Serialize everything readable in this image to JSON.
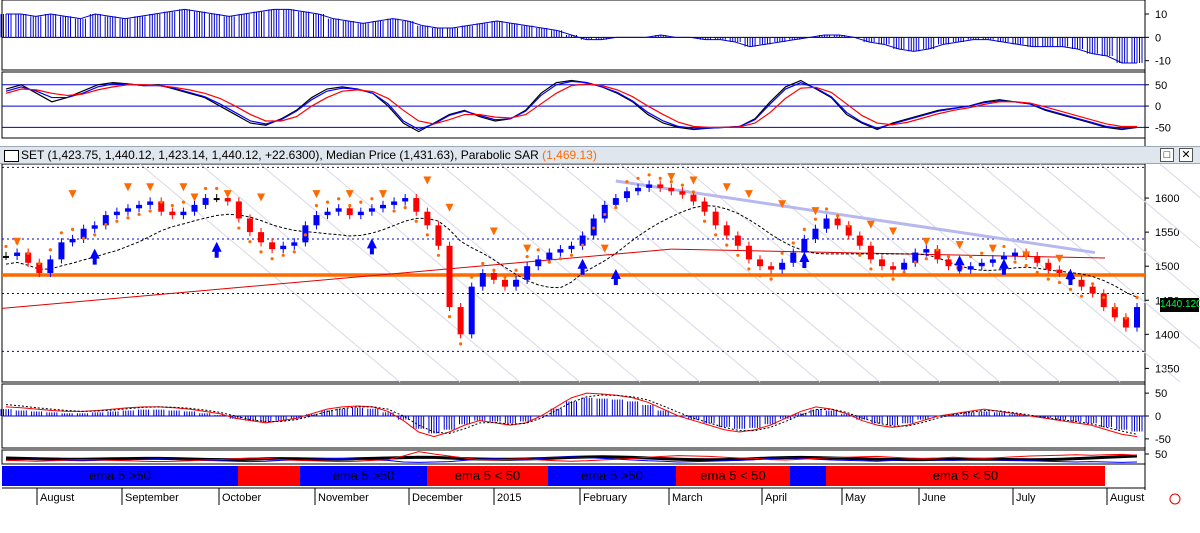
{
  "title_bar": {
    "symbol_text": "SET (1,423.75, 1,440.12, 1,423.14, 1,440.12, +22.6300), Median Price (1,431.63), Parabolic SAR",
    "sar_value": "(1,469.13)",
    "maximize_label": "□",
    "close_label": "✕"
  },
  "last_price": "1440.120",
  "colors": {
    "up": "#0000ff",
    "down": "#ff0000",
    "neutral": "#000000",
    "sar": "#ff6a00",
    "grid": "#0000cc",
    "support": "#ff6a00"
  },
  "chart_data": [
    {
      "type": "bar",
      "name": "momentum histogram",
      "yticks": [
        "10",
        "0",
        "-10"
      ],
      "ylim": [
        -14,
        16
      ],
      "values": [
        10,
        10,
        9,
        10,
        9,
        8,
        10,
        9,
        8,
        9,
        10,
        11,
        12,
        11,
        10,
        9,
        10,
        11,
        12,
        12,
        11,
        10,
        8,
        7,
        6,
        7,
        8,
        7,
        5,
        4,
        4,
        5,
        6,
        7,
        6,
        5,
        4,
        3,
        1,
        -1,
        -1,
        0,
        0,
        0,
        1,
        0,
        0,
        -1,
        -1,
        -2,
        -4,
        -3,
        -2,
        -1,
        0,
        1,
        1,
        0,
        -2,
        -3,
        -5,
        -6,
        -5,
        -3,
        -2,
        -1,
        -1,
        -2,
        -3,
        -4,
        -4,
        -4,
        -5,
        -7,
        -8,
        -11,
        -11
      ]
    },
    {
      "type": "line",
      "name": "stochastic",
      "yticks": [
        "50",
        "0",
        "-50"
      ],
      "ylim": [
        -75,
        80
      ],
      "series": [
        {
          "color": "#000000",
          "values": [
            40,
            50,
            30,
            10,
            20,
            35,
            50,
            55,
            52,
            48,
            50,
            40,
            30,
            20,
            0,
            -20,
            -40,
            -45,
            -30,
            -10,
            20,
            40,
            45,
            40,
            30,
            0,
            -40,
            -60,
            -40,
            -20,
            -10,
            -25,
            -35,
            -30,
            -10,
            30,
            55,
            60,
            55,
            45,
            30,
            10,
            -20,
            -40,
            -50,
            -55,
            -52,
            -50,
            -48,
            -30,
            10,
            45,
            60,
            40,
            20,
            -20,
            -40,
            -55,
            -40,
            -30,
            -20,
            -10,
            -5,
            0,
            10,
            15,
            10,
            5,
            -10,
            -20,
            -30,
            -40,
            -50,
            -55,
            -50
          ]
        },
        {
          "color": "#0000ff",
          "values": [
            35,
            45,
            35,
            20,
            20,
            30,
            45,
            52,
            52,
            48,
            48,
            42,
            32,
            22,
            5,
            -15,
            -35,
            -42,
            -32,
            -12,
            15,
            35,
            42,
            40,
            30,
            5,
            -35,
            -55,
            -42,
            -22,
            -12,
            -22,
            -32,
            -30,
            -12,
            25,
            50,
            58,
            55,
            45,
            32,
            12,
            -15,
            -35,
            -48,
            -52,
            -52,
            -50,
            -48,
            -32,
            5,
            40,
            55,
            42,
            22,
            -15,
            -38,
            -52,
            -42,
            -32,
            -22,
            -12,
            -6,
            0,
            8,
            12,
            10,
            5,
            -8,
            -18,
            -28,
            -38,
            -48,
            -52,
            -50
          ]
        },
        {
          "color": "#ff0000",
          "values": [
            30,
            40,
            38,
            30,
            25,
            28,
            38,
            45,
            50,
            50,
            48,
            44,
            38,
            30,
            18,
            0,
            -20,
            -35,
            -35,
            -25,
            0,
            20,
            35,
            38,
            34,
            18,
            -10,
            -35,
            -42,
            -32,
            -20,
            -20,
            -26,
            -28,
            -20,
            5,
            30,
            48,
            52,
            48,
            38,
            22,
            0,
            -20,
            -38,
            -48,
            -50,
            -50,
            -49,
            -40,
            -15,
            18,
            42,
            44,
            32,
            5,
            -22,
            -40,
            -44,
            -38,
            -28,
            -18,
            -10,
            -4,
            4,
            10,
            10,
            7,
            -2,
            -12,
            -22,
            -32,
            -42,
            -48,
            -48
          ]
        }
      ]
    },
    {
      "type": "line",
      "name": "SET daily candles",
      "yticks": [
        "1600",
        "1550",
        "1500",
        "1450",
        "1400",
        "1350"
      ],
      "ylim": [
        1330,
        1650
      ],
      "support_level": 1487,
      "dotted_levels": [
        1645,
        1540,
        1460,
        1375
      ],
      "close": [
        1515,
        1520,
        1505,
        1490,
        1510,
        1535,
        1540,
        1555,
        1560,
        1575,
        1580,
        1585,
        1590,
        1595,
        1580,
        1575,
        1580,
        1590,
        1600,
        1600,
        1595,
        1570,
        1550,
        1535,
        1525,
        1530,
        1535,
        1560,
        1575,
        1580,
        1585,
        1575,
        1580,
        1585,
        1590,
        1595,
        1600,
        1580,
        1560,
        1530,
        1440,
        1400,
        1470,
        1490,
        1480,
        1470,
        1480,
        1500,
        1510,
        1520,
        1525,
        1530,
        1545,
        1570,
        1590,
        1600,
        1610,
        1615,
        1620,
        1615,
        1610,
        1605,
        1595,
        1580,
        1560,
        1545,
        1530,
        1510,
        1500,
        1495,
        1505,
        1520,
        1540,
        1555,
        1570,
        1560,
        1545,
        1530,
        1510,
        1500,
        1495,
        1505,
        1520,
        1525,
        1510,
        1500,
        1495,
        1500,
        1505,
        1510,
        1515,
        1520,
        1515,
        1505,
        1495,
        1490,
        1480,
        1470,
        1460,
        1440,
        1425,
        1410,
        1440
      ],
      "sar_marks_down": [
        [
          1,
          1530
        ],
        [
          6,
          1600
        ],
        [
          11,
          1610
        ],
        [
          13,
          1610
        ],
        [
          16,
          1610
        ],
        [
          17,
          1595
        ],
        [
          20,
          1600
        ],
        [
          23,
          1595
        ],
        [
          28,
          1600
        ],
        [
          31,
          1600
        ],
        [
          34,
          1600
        ],
        [
          38,
          1620
        ],
        [
          40,
          1580
        ],
        [
          44,
          1545
        ],
        [
          47,
          1520
        ],
        [
          54,
          1520
        ],
        [
          60,
          1625
        ],
        [
          62,
          1620
        ],
        [
          65,
          1610
        ],
        [
          67,
          1600
        ],
        [
          70,
          1585
        ],
        [
          73,
          1575
        ],
        [
          78,
          1555
        ],
        [
          80,
          1545
        ],
        [
          83,
          1530
        ],
        [
          86,
          1525
        ],
        [
          89,
          1520
        ],
        [
          92,
          1510
        ],
        [
          95,
          1505
        ]
      ],
      "sar_marks_up": [
        [
          8,
          1520
        ],
        [
          19,
          1530
        ],
        [
          33,
          1535
        ],
        [
          52,
          1505
        ],
        [
          55,
          1490
        ],
        [
          72,
          1515
        ],
        [
          86,
          1510
        ],
        [
          90,
          1505
        ],
        [
          96,
          1490
        ]
      ]
    },
    {
      "type": "line",
      "name": "MACD",
      "yticks": [
        "50",
        "0",
        "-50"
      ],
      "ylim": [
        -70,
        70
      ],
      "series": [
        {
          "color": "#ff0000",
          "values": [
            20,
            18,
            15,
            12,
            10,
            10,
            12,
            15,
            18,
            20,
            20,
            18,
            15,
            10,
            5,
            -5,
            -10,
            -15,
            -10,
            -5,
            5,
            15,
            20,
            22,
            20,
            10,
            -10,
            -35,
            -45,
            -35,
            -20,
            -10,
            -15,
            -20,
            -15,
            0,
            20,
            40,
            50,
            48,
            45,
            40,
            30,
            15,
            0,
            -10,
            -20,
            -30,
            -35,
            -30,
            -20,
            -5,
            10,
            20,
            15,
            5,
            -10,
            -20,
            -25,
            -20,
            -10,
            0,
            5,
            10,
            15,
            10,
            5,
            0,
            -5,
            -10,
            -15,
            -20,
            -30,
            -40,
            -45
          ]
        },
        {
          "color": "#000000",
          "values": [
            25,
            22,
            18,
            15,
            12,
            10,
            11,
            13,
            16,
            19,
            20,
            19,
            17,
            13,
            8,
            0,
            -8,
            -12,
            -12,
            -8,
            0,
            10,
            16,
            20,
            20,
            15,
            0,
            -20,
            -35,
            -38,
            -28,
            -15,
            -14,
            -18,
            -16,
            -5,
            12,
            30,
            42,
            46,
            45,
            42,
            35,
            22,
            8,
            -5,
            -15,
            -25,
            -32,
            -32,
            -25,
            -12,
            2,
            14,
            15,
            8,
            -4,
            -15,
            -22,
            -22,
            -14,
            -4,
            3,
            8,
            12,
            11,
            7,
            2,
            -3,
            -8,
            -12,
            -17,
            -25,
            -33,
            -40
          ]
        }
      ],
      "histogram": [
        15,
        12,
        10,
        8,
        6,
        6,
        8,
        10,
        12,
        14,
        14,
        12,
        10,
        6,
        2,
        -6,
        -10,
        -14,
        -10,
        -6,
        4,
        12,
        16,
        18,
        16,
        8,
        -8,
        -28,
        -38,
        -30,
        -18,
        -10,
        -12,
        -16,
        -12,
        0,
        16,
        32,
        40,
        38,
        36,
        32,
        24,
        12,
        0,
        -8,
        -16,
        -24,
        -28,
        -26,
        -18,
        -6,
        6,
        14,
        12,
        4,
        -8,
        -16,
        -20,
        -16,
        -8,
        0,
        4,
        8,
        10,
        8,
        4,
        0,
        -4,
        -8,
        -12,
        -16,
        -24,
        -30,
        -34
      ]
    },
    {
      "type": "line",
      "name": "ADX / DMI",
      "yticks": [
        "50"
      ],
      "ylim": [
        0,
        70
      ],
      "series": [
        {
          "color": "#000000",
          "values": [
            30,
            28,
            26,
            25,
            24,
            24,
            25,
            26,
            27,
            28,
            28,
            27,
            25,
            23,
            22,
            22,
            24,
            26,
            27,
            26,
            25,
            24,
            24,
            26,
            28,
            30,
            32,
            34,
            33,
            30,
            27,
            25,
            24,
            24,
            25,
            27,
            30,
            33,
            35,
            36,
            35,
            33,
            30,
            27,
            24,
            22,
            21,
            22,
            24,
            27,
            30,
            32,
            33,
            32,
            30,
            28,
            26,
            24,
            23,
            22,
            22,
            23,
            24,
            24,
            24,
            23,
            22,
            21,
            22,
            24,
            27,
            30,
            34,
            37,
            40
          ]
        },
        {
          "color": "#0000ff",
          "values": [
            20,
            22,
            24,
            20,
            18,
            16,
            18,
            20,
            22,
            24,
            26,
            24,
            22,
            18,
            16,
            14,
            12,
            14,
            18,
            20,
            24,
            26,
            28,
            24,
            20,
            18,
            10,
            8,
            10,
            12,
            18,
            24,
            26,
            22,
            20,
            28,
            34,
            36,
            32,
            28,
            24,
            20,
            16,
            14,
            10,
            12,
            14,
            16,
            18,
            22,
            28,
            32,
            28,
            24,
            20,
            18,
            16,
            14,
            18,
            22,
            24,
            20,
            18,
            22,
            24,
            20,
            18,
            16,
            14,
            12,
            10,
            12,
            10,
            8,
            10
          ]
        },
        {
          "color": "#ff0000",
          "values": [
            18,
            16,
            14,
            16,
            20,
            22,
            20,
            18,
            16,
            14,
            12,
            14,
            16,
            20,
            22,
            26,
            30,
            28,
            22,
            18,
            16,
            14,
            12,
            14,
            18,
            22,
            40,
            62,
            50,
            40,
            30,
            22,
            20,
            24,
            26,
            20,
            16,
            14,
            16,
            20,
            24,
            28,
            34,
            38,
            42,
            40,
            38,
            34,
            30,
            28,
            22,
            20,
            24,
            28,
            32,
            34,
            36,
            38,
            34,
            30,
            28,
            30,
            34,
            30,
            28,
            32,
            36,
            40,
            42,
            44,
            46,
            44,
            46,
            48,
            44
          ]
        }
      ]
    }
  ],
  "signal_bar": [
    {
      "label": "ema 5 >50",
      "color": "#0000ff"
    },
    {
      "label": "",
      "color": "#ff0000"
    },
    {
      "label": "ema 5 >50",
      "color": "#0000ff"
    },
    {
      "label": "ema 5 < 50",
      "color": "#ff0000"
    },
    {
      "label": "ema 5 >50",
      "color": "#0000ff"
    },
    {
      "label": "ema 5 < 50",
      "color": "#ff0000"
    },
    {
      "label": "",
      "color": "#0000ff"
    },
    {
      "label": "ema 5 < 50",
      "color": "#ff0000"
    }
  ],
  "x_axis": [
    "August",
    "September",
    "October",
    "November",
    "December",
    "2015",
    "February",
    "March",
    "April",
    "May",
    "June",
    "July",
    "August"
  ]
}
